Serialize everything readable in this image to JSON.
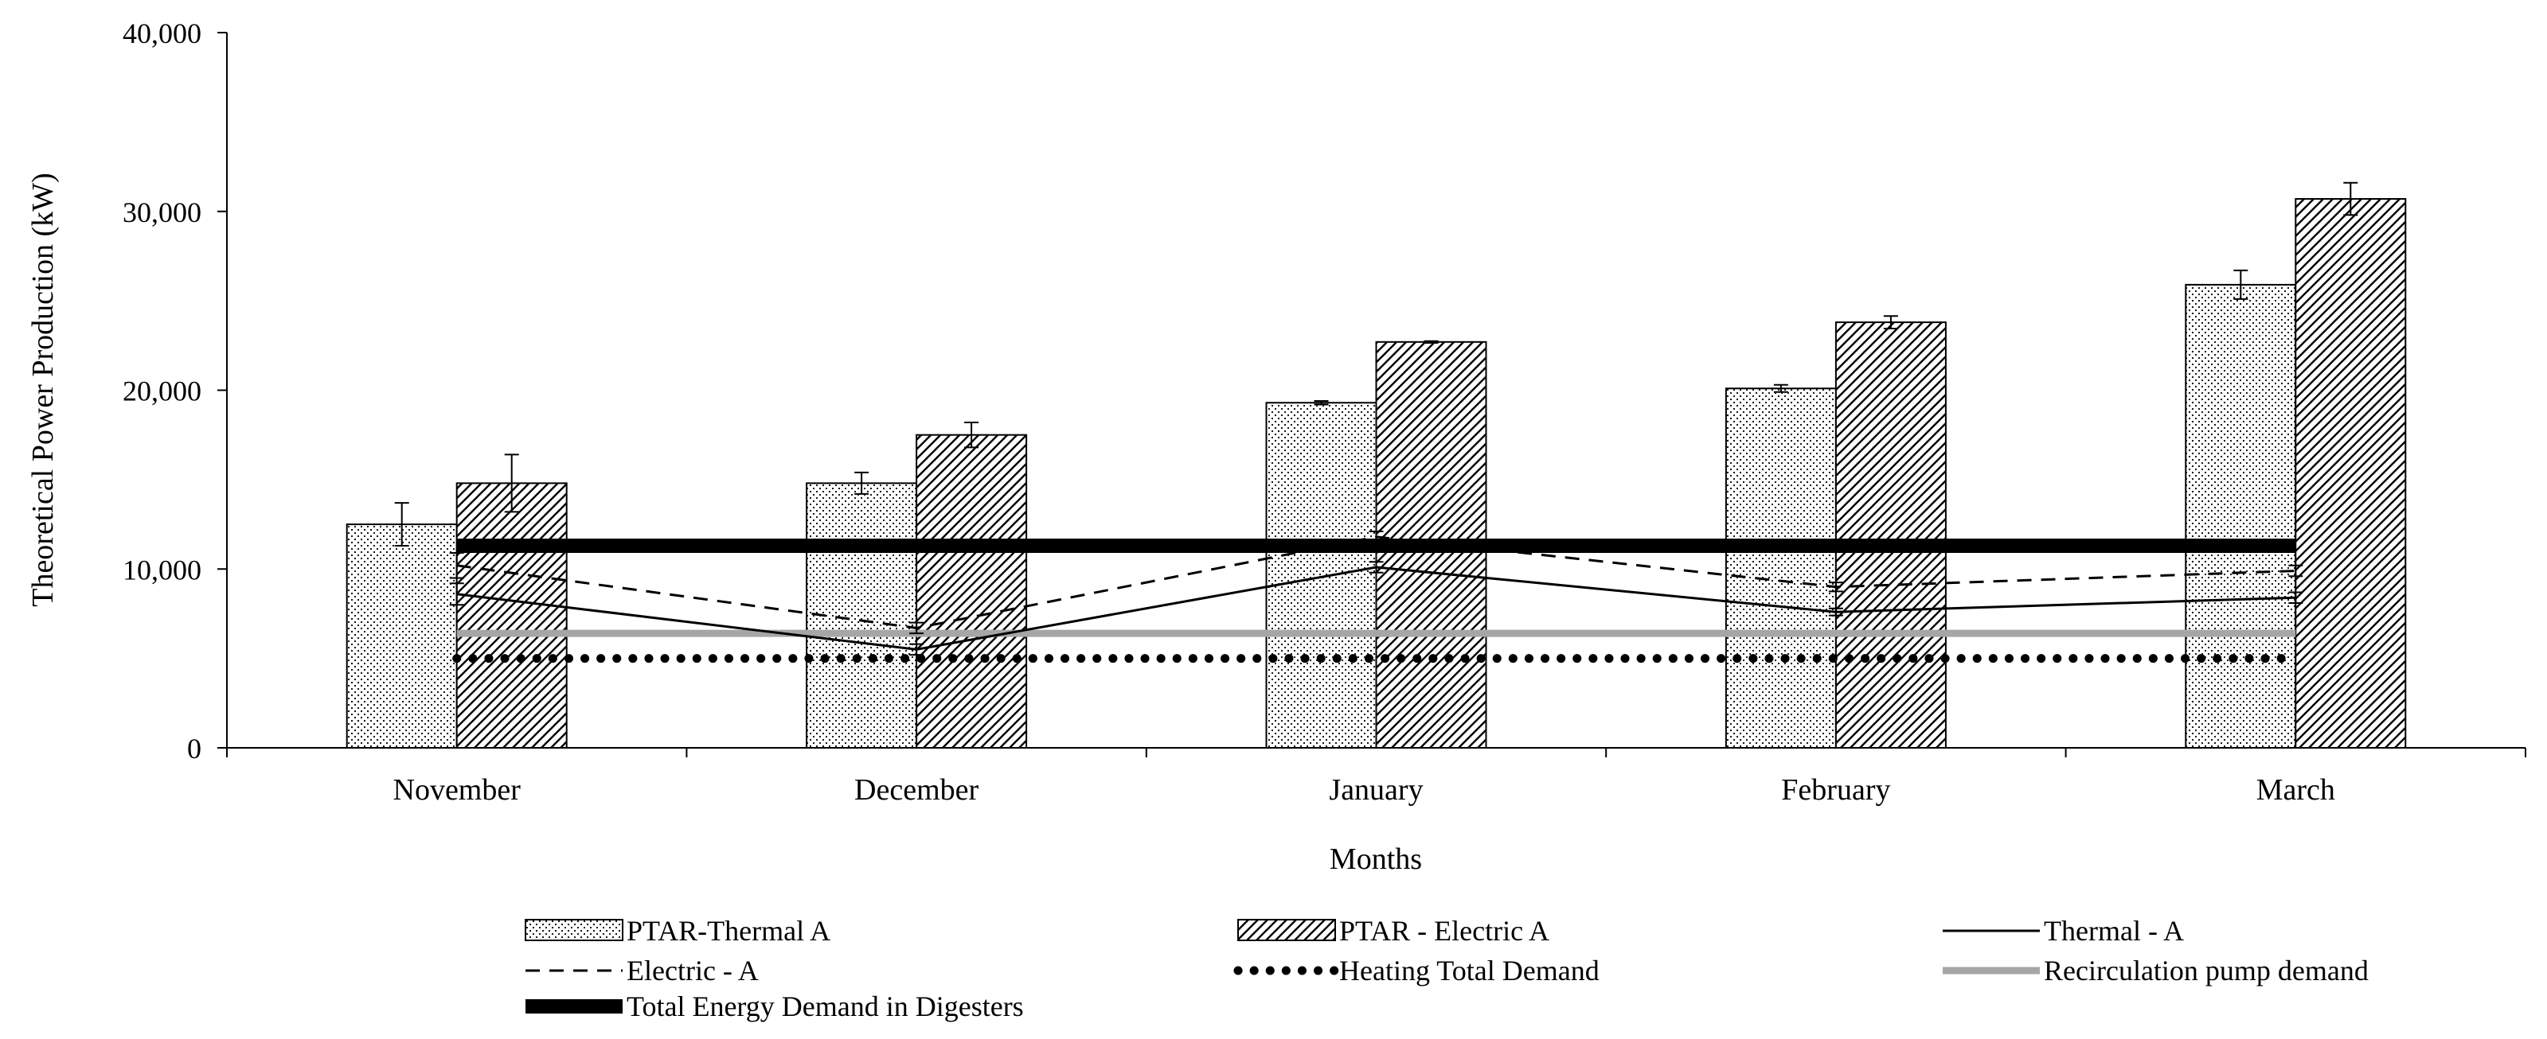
{
  "chart_data": {
    "type": "bar",
    "title": "",
    "xlabel": "Months",
    "ylabel": "Theoretical Power Production (kW)",
    "ylim": [
      0,
      40000
    ],
    "yticks": [
      0,
      10000,
      20000,
      30000,
      40000
    ],
    "ytick_labels": [
      "0",
      "10,000",
      "20,000",
      "30,000",
      "40,000"
    ],
    "categories": [
      "November",
      "December",
      "January",
      "February",
      "March"
    ],
    "bar_series": [
      {
        "name": "PTAR-Thermal A",
        "pattern": "dots",
        "values": [
          12500,
          14800,
          19300,
          20100,
          25900
        ],
        "errors": [
          1200,
          600,
          100,
          200,
          800
        ]
      },
      {
        "name": "PTAR - Electric A",
        "pattern": "hatch",
        "values": [
          14800,
          17500,
          22700,
          23800,
          30700
        ],
        "errors": [
          1600,
          700,
          50,
          350,
          900
        ]
      }
    ],
    "line_series": [
      {
        "name": "Thermal - A",
        "style": "solid",
        "values": [
          8600,
          5500,
          10100,
          7600,
          8400
        ],
        "errors": [
          600,
          300,
          300,
          200,
          300
        ]
      },
      {
        "name": "Electric - A",
        "style": "dashed",
        "values": [
          10200,
          6700,
          11800,
          9000,
          9900
        ],
        "errors": [
          700,
          300,
          300,
          250,
          300
        ]
      },
      {
        "name": "Heating Total Demand",
        "style": "dotted",
        "values": [
          5000,
          5000,
          5000,
          5000,
          5000
        ]
      },
      {
        "name": "Recirculation pump demand",
        "style": "gray",
        "values": [
          6400,
          6400,
          6400,
          6400,
          6400
        ]
      },
      {
        "name": "Total Energy Demand in Digesters",
        "style": "thick",
        "values": [
          11300,
          11300,
          11300,
          11300,
          11300
        ]
      }
    ],
    "legend_order": [
      "PTAR-Thermal A",
      "PTAR - Electric A",
      "Thermal - A",
      "Electric - A",
      "Heating Total Demand",
      "Recirculation pump demand",
      "Total Energy Demand in Digesters"
    ],
    "legend_position": "bottom",
    "grid": false
  }
}
